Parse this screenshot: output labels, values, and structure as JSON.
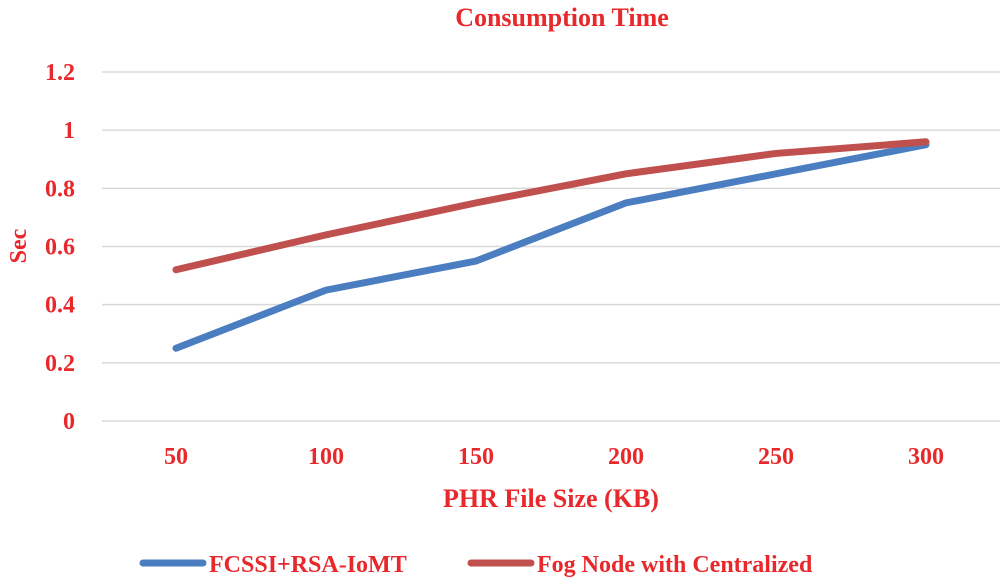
{
  "chart_data": {
    "type": "line",
    "title": "Consumption Time",
    "xlabel": "PHR File Size (KB)",
    "ylabel": "Sec",
    "categories": [
      "50",
      "100",
      "150",
      "200",
      "250",
      "300"
    ],
    "y_ticks": [
      "0",
      "0.2",
      "0.4",
      "0.6",
      "0.8",
      "1",
      "1.2"
    ],
    "ylim": [
      0,
      1.2
    ],
    "grid": true,
    "legend_position": "bottom",
    "series": [
      {
        "name": "FCSSI+RSA-IoMT",
        "values": [
          0.25,
          0.45,
          0.55,
          0.75,
          0.85,
          0.95
        ],
        "color": "#4A7EC1"
      },
      {
        "name": "Fog Node with Centralized",
        "values": [
          0.52,
          0.64,
          0.75,
          0.85,
          0.92,
          0.96
        ],
        "color": "#C0504D"
      }
    ],
    "text_color": "#E8282B",
    "grid_color": "#D9D9D9"
  }
}
